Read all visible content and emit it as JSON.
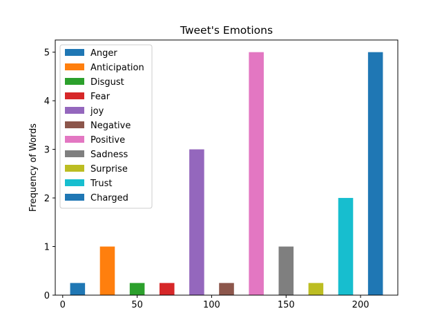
{
  "chart_data": {
    "type": "bar",
    "title": "Tweet's Emotions",
    "xlabel": "",
    "ylabel": "Frequency of Words",
    "xlim": [
      -5,
      225
    ],
    "ylim": [
      0,
      5.25
    ],
    "xticks": [
      0,
      50,
      100,
      150,
      200
    ],
    "yticks": [
      0,
      1,
      2,
      3,
      4,
      5
    ],
    "grid": false,
    "legend_position": "top-left",
    "bar_width": 10,
    "series": [
      {
        "name": "Anger",
        "x": 10,
        "value": 0.25,
        "color": "#1f77b4"
      },
      {
        "name": "Anticipation",
        "x": 30,
        "value": 1,
        "color": "#ff7f0e"
      },
      {
        "name": "Disgust",
        "x": 50,
        "value": 0.25,
        "color": "#2ca02c"
      },
      {
        "name": "Fear",
        "x": 70,
        "value": 0.25,
        "color": "#d62728"
      },
      {
        "name": "joy",
        "x": 90,
        "value": 3,
        "color": "#9467bd"
      },
      {
        "name": "Negative",
        "x": 110,
        "value": 0.25,
        "color": "#8c564b"
      },
      {
        "name": "Positive",
        "x": 130,
        "value": 5,
        "color": "#e377c2"
      },
      {
        "name": "Sadness",
        "x": 150,
        "value": 1,
        "color": "#7f7f7f"
      },
      {
        "name": "Surprise",
        "x": 170,
        "value": 0.25,
        "color": "#bcbd22"
      },
      {
        "name": "Trust",
        "x": 190,
        "value": 2,
        "color": "#17becf"
      },
      {
        "name": "Charged",
        "x": 210,
        "value": 5,
        "color": "#1f77b4"
      }
    ]
  }
}
